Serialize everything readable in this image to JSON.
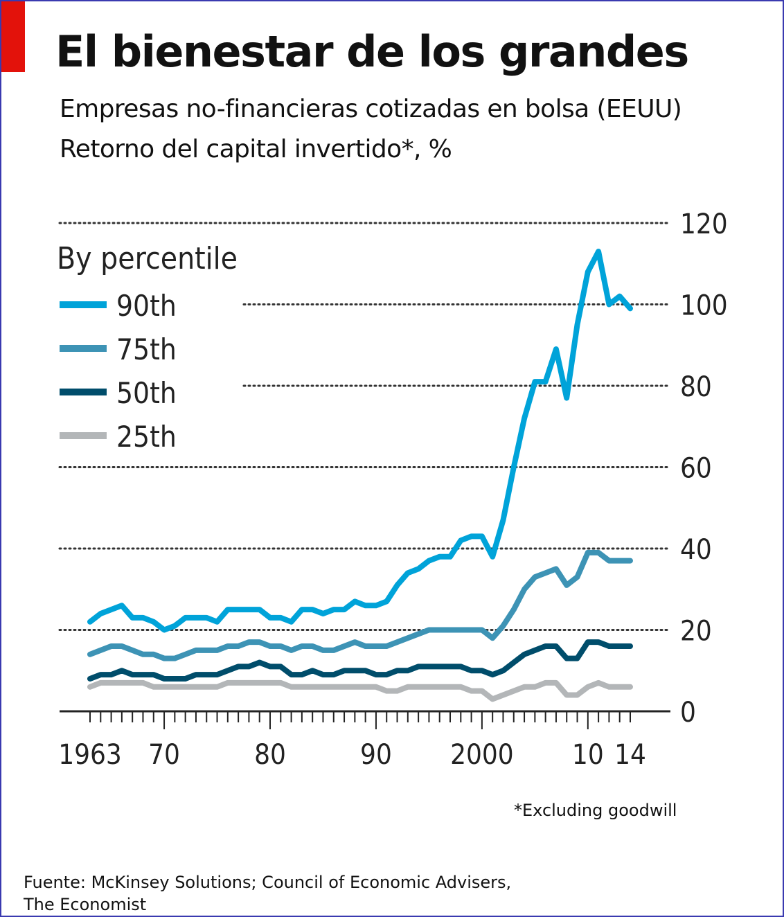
{
  "title": "El bienestar de los grandes",
  "subtitle_line1": "Empresas no-financieras cotizadas en bolsa (EEUU)",
  "subtitle_line2": "Retorno del capital invertido*, %",
  "footnote": "*Excluding goodwill",
  "source_line1": "Fuente: McKinsey Solutions; Council of Economic Advisers,",
  "source_line2": "The Economist",
  "colors": {
    "accent": "#e3120b",
    "p90": "#00a3d9",
    "p75": "#3d93b5",
    "p50": "#004d6b",
    "p25": "#b3b6b8"
  },
  "chart_data": {
    "type": "line",
    "legend_title": "By percentile",
    "legend_position": "top-left",
    "y_axis_position": "right",
    "ylim": [
      0,
      120
    ],
    "yticks": [
      0,
      20,
      40,
      60,
      80,
      100,
      120
    ],
    "xlim": [
      1963,
      2014
    ],
    "xtick_labels": [
      {
        "value": 1963,
        "label": "1963"
      },
      {
        "value": 1970,
        "label": "70"
      },
      {
        "value": 1980,
        "label": "80"
      },
      {
        "value": 1990,
        "label": "90"
      },
      {
        "value": 2000,
        "label": "2000"
      },
      {
        "value": 2010,
        "label": "10"
      },
      {
        "value": 2014,
        "label": "14"
      }
    ],
    "grid": "horizontal dotted",
    "x": [
      1963,
      1964,
      1965,
      1966,
      1967,
      1968,
      1969,
      1970,
      1971,
      1972,
      1973,
      1974,
      1975,
      1976,
      1977,
      1978,
      1979,
      1980,
      1981,
      1982,
      1983,
      1984,
      1985,
      1986,
      1987,
      1988,
      1989,
      1990,
      1991,
      1992,
      1993,
      1994,
      1995,
      1996,
      1997,
      1998,
      1999,
      2000,
      2001,
      2002,
      2003,
      2004,
      2005,
      2006,
      2007,
      2008,
      2009,
      2010,
      2011,
      2012,
      2013,
      2014
    ],
    "series": [
      {
        "name": "90th",
        "color_key": "p90",
        "values": [
          22,
          24,
          25,
          26,
          23,
          23,
          22,
          20,
          21,
          23,
          23,
          23,
          22,
          25,
          25,
          25,
          25,
          23,
          23,
          22,
          25,
          25,
          24,
          25,
          25,
          27,
          26,
          26,
          27,
          31,
          34,
          35,
          37,
          38,
          38,
          42,
          43,
          43,
          38,
          47,
          60,
          72,
          81,
          81,
          89,
          77,
          95,
          108,
          113,
          100,
          102,
          99
        ]
      },
      {
        "name": "75th",
        "color_key": "p75",
        "values": [
          14,
          15,
          16,
          16,
          15,
          14,
          14,
          13,
          13,
          14,
          15,
          15,
          15,
          16,
          16,
          17,
          17,
          16,
          16,
          15,
          16,
          16,
          15,
          15,
          16,
          17,
          16,
          16,
          16,
          17,
          18,
          19,
          20,
          20,
          20,
          20,
          20,
          20,
          18,
          21,
          25,
          30,
          33,
          34,
          35,
          31,
          33,
          39,
          39,
          37,
          37,
          37
        ]
      },
      {
        "name": "50th",
        "color_key": "p50",
        "values": [
          8,
          9,
          9,
          10,
          9,
          9,
          9,
          8,
          8,
          8,
          9,
          9,
          9,
          10,
          11,
          11,
          12,
          11,
          11,
          9,
          9,
          10,
          9,
          9,
          10,
          10,
          10,
          9,
          9,
          10,
          10,
          11,
          11,
          11,
          11,
          11,
          10,
          10,
          9,
          10,
          12,
          14,
          15,
          16,
          16,
          13,
          13,
          17,
          17,
          16,
          16,
          16
        ]
      },
      {
        "name": "25th",
        "color_key": "p25",
        "values": [
          6,
          7,
          7,
          7,
          7,
          7,
          6,
          6,
          6,
          6,
          6,
          6,
          6,
          7,
          7,
          7,
          7,
          7,
          7,
          6,
          6,
          6,
          6,
          6,
          6,
          6,
          6,
          6,
          5,
          5,
          6,
          6,
          6,
          6,
          6,
          6,
          5,
          5,
          3,
          4,
          5,
          6,
          6,
          7,
          7,
          4,
          4,
          6,
          7,
          6,
          6,
          6
        ]
      }
    ]
  }
}
